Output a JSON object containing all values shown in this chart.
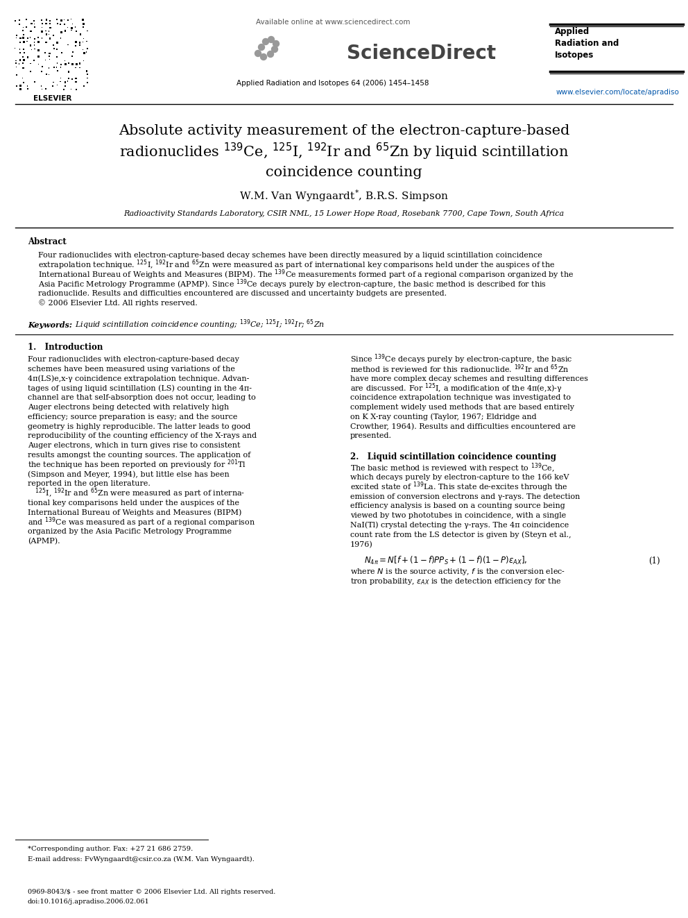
{
  "bg_color": "#ffffff",
  "header": {
    "available_online": "Available online at www.sciencedirect.com",
    "sciencedirect": "ScienceDirect",
    "journal_name_header": "Applied\nRadiation and\nIsotopes",
    "journal_info": "Applied Radiation and Isotopes 64 (2006) 1454–1458",
    "elsevier_url": "www.elsevier.com/locate/apradiso",
    "elsevier_label": "ELSEVIER"
  },
  "title_line1": "Absolute activity measurement of the electron-capture-based",
  "title_line2": "radionuclides $^{139}$Ce, $^{125}$I, $^{192}$Ir and $^{65}$Zn by liquid scintillation",
  "title_line3": "coincidence counting",
  "authors": "W.M. Van Wyngaardt$^{*}$, B.R.S. Simpson",
  "affiliation": "Radioactivity Standards Laboratory, CSIR NML, 15 Lower Hope Road, Rosebank 7700, Cape Town, South Africa",
  "abstract_title": "Abstract",
  "abstract_lines": [
    "Four radionuclides with electron-capture-based decay schemes have been directly measured by a liquid scintillation coincidence",
    "extrapolation technique. $^{125}$I, $^{192}$Ir and $^{65}$Zn were measured as part of international key comparisons held under the auspices of the",
    "International Bureau of Weights and Measures (BIPM). The $^{139}$Ce measurements formed part of a regional comparison organized by the",
    "Asia Pacific Metrology Programme (APMP). Since $^{139}$Ce decays purely by electron-capture, the basic method is described for this",
    "radionuclide. Results and difficulties encountered are discussed and uncertainty budgets are presented.",
    "© 2006 Elsevier Ltd. All rights reserved."
  ],
  "keywords_label": "Keywords:",
  "keywords_text": "Liquid scintillation coincidence counting; $^{139}$Ce; $^{125}$I; $^{192}$Ir; $^{65}$Zn",
  "section1_title": "1.   Introduction",
  "col1_lines": [
    "Four radionuclides with electron-capture-based decay",
    "schemes have been measured using variations of the",
    "4π(LS)e,x-γ coincidence extrapolation technique. Advan-",
    "tages of using liquid scintillation (LS) counting in the 4π-",
    "channel are that self-absorption does not occur, leading to",
    "Auger electrons being detected with relatively high",
    "efficiency; source preparation is easy; and the source",
    "geometry is highly reproducible. The latter leads to good",
    "reproducibility of the counting efficiency of the X-rays and",
    "Auger electrons, which in turn gives rise to consistent",
    "results amongst the counting sources. The application of",
    "the technique has been reported on previously for $^{201}$Tl",
    "(Simpson and Meyer, 1994), but little else has been",
    "reported in the open literature.",
    "   $^{125}$I, $^{192}$Ir and $^{65}$Zn were measured as part of interna-",
    "tional key comparisons held under the auspices of the",
    "International Bureau of Weights and Measures (BIPM)",
    "and $^{139}$Ce was measured as part of a regional comparison",
    "organized by the Asia Pacific Metrology Programme",
    "(APMP)."
  ],
  "col2_lines_s1": [
    "Since $^{139}$Ce decays purely by electron-capture, the basic",
    "method is reviewed for this radionuclide. $^{192}$Ir and $^{65}$Zn",
    "have more complex decay schemes and resulting differences",
    "are discussed. For $^{125}$I, a modification of the 4π(e,x)-γ",
    "coincidence extrapolation technique was investigated to",
    "complement widely used methods that are based entirely",
    "on K X-ray counting (Taylor, 1967; Eldridge and",
    "Crowther, 1964). Results and difficulties encountered are",
    "presented."
  ],
  "section2_title": "2.   Liquid scintillation coincidence counting",
  "col2_lines_s2": [
    "The basic method is reviewed with respect to $^{139}$Ce,",
    "which decays purely by electron-capture to the 166 keV",
    "excited state of $^{139}$La. This state de-excites through the",
    "emission of conversion electrons and γ-rays. The detection",
    "efficiency analysis is based on a counting source being",
    "viewed by two phototubes in coincidence, with a single",
    "NaI(Tl) crystal detecting the γ-rays. The 4π coincidence",
    "count rate from the LS detector is given by (Steyn et al.,",
    "1976)"
  ],
  "equation1": "$N_{4\\pi} = N[f + (1-f)PP_S + (1-f)(1-P)\\varepsilon_{AX}],$",
  "equation1_num": "(1)",
  "eq_desc_lines": [
    "where $N$ is the source activity, $f$ is the conversion elec-",
    "tron probability, $\\varepsilon_{AX}$ is the detection efficiency for the"
  ],
  "footnote1": "*Corresponding author. Fax: +27 21 686 2759.",
  "footnote2": "E-mail address: FvWyngaardt@csir.co.za (W.M. Van Wyngaardt).",
  "footer1": "0969-8043/$ - see front matter © 2006 Elsevier Ltd. All rights reserved.",
  "footer2": "doi:10.1016/j.apradiso.2006.02.061"
}
